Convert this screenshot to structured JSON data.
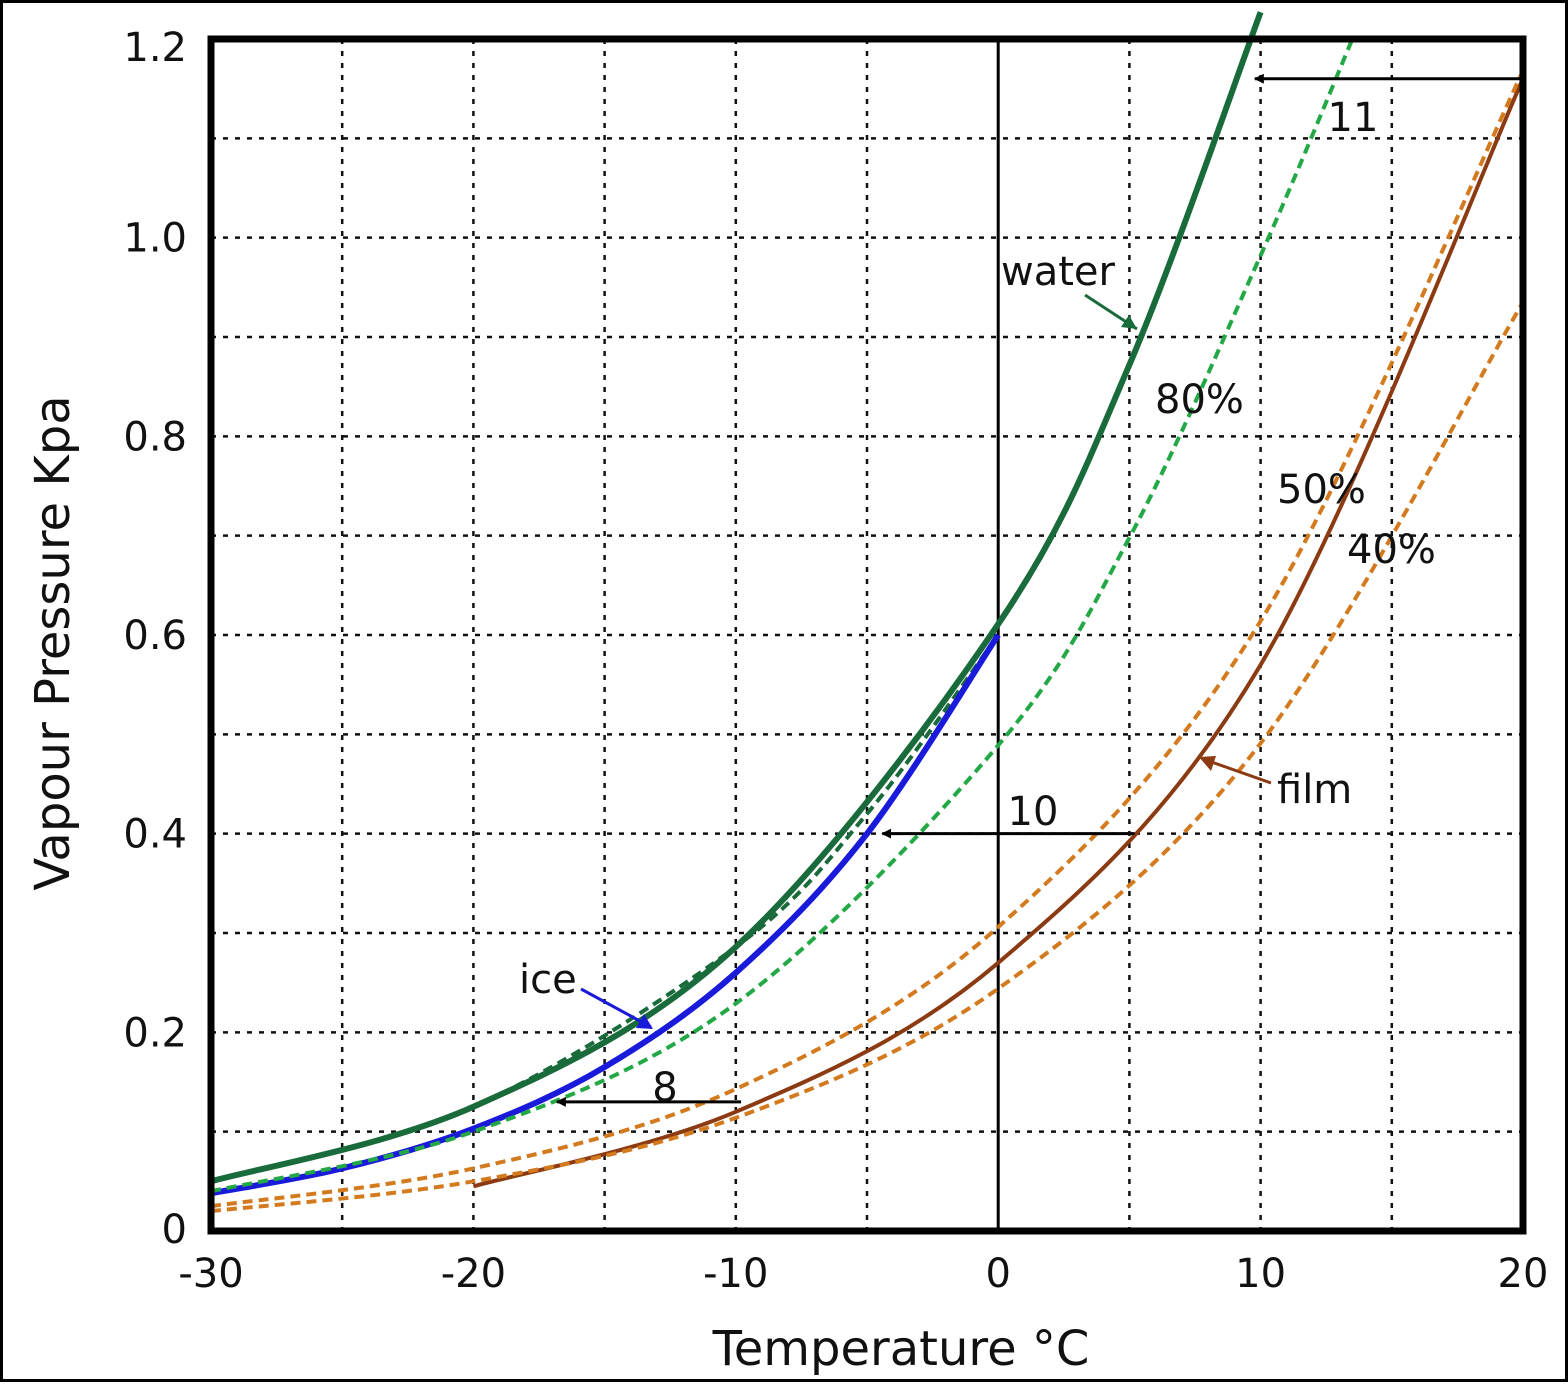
{
  "chart_data": {
    "type": "line",
    "title": "",
    "xlabel": "Temperature °C",
    "ylabel": "Vapour Pressure Kpa",
    "xlim": [
      -30,
      20
    ],
    "ylim": [
      0,
      1.2
    ],
    "grid": true,
    "x_ticks": [
      -30,
      -20,
      -10,
      0,
      10,
      20
    ],
    "x_tick_labels": [
      "-30",
      "-20",
      "-10",
      "0",
      "10",
      "20"
    ],
    "y_ticks": [
      0,
      0.2,
      0.4,
      0.6,
      0.8,
      1.0,
      1.2
    ],
    "y_tick_labels": [
      "0",
      "0.2",
      "0.4",
      "0.6",
      "0.8",
      "1.0",
      "1.2"
    ],
    "series": [
      {
        "name": "water",
        "color": "#1a6b3c",
        "style": "solid",
        "x": [
          -30,
          -20,
          -10,
          0,
          5,
          10
        ],
        "y": [
          0.05,
          0.125,
          0.286,
          0.611,
          0.872,
          1.227
        ]
      },
      {
        "color": "#1a6b3c",
        "style": "dashed",
        "x": [
          -30,
          -20,
          -10,
          -5,
          0
        ],
        "y": [
          0.05,
          0.125,
          0.286,
          0.42,
          0.6
        ]
      },
      {
        "name": "ice",
        "color": "#1a1adb",
        "style": "solid",
        "x": [
          -30,
          -25,
          -20,
          -15,
          -10,
          -5,
          0
        ],
        "y": [
          0.038,
          0.063,
          0.103,
          0.165,
          0.26,
          0.4,
          0.6
        ]
      },
      {
        "name": "80%",
        "color": "#22a845",
        "style": "dashed",
        "x": [
          -30,
          -20,
          -10,
          0,
          5,
          10,
          13.5
        ],
        "y": [
          0.04,
          0.1,
          0.229,
          0.489,
          0.698,
          0.982,
          1.2
        ]
      },
      {
        "name": "film",
        "color": "#8b3a12",
        "style": "solid",
        "x": [
          -20,
          -10,
          0,
          10,
          20
        ],
        "y": [
          0.045,
          0.12,
          0.27,
          0.57,
          1.16
        ]
      },
      {
        "name": "50%",
        "color": "#d47a1e",
        "style": "dashed",
        "x": [
          -30,
          -20,
          -10,
          0,
          10,
          20
        ],
        "y": [
          0.025,
          0.063,
          0.143,
          0.306,
          0.614,
          1.168
        ]
      },
      {
        "name": "40%",
        "color": "#d47a1e",
        "style": "dashed",
        "x": [
          -30,
          -20,
          -10,
          0,
          10,
          20
        ],
        "y": [
          0.02,
          0.05,
          0.114,
          0.244,
          0.491,
          0.935
        ]
      }
    ],
    "annotations": [
      {
        "text": "11",
        "arrow_from": [
          20,
          1.16
        ],
        "arrow_to": [
          9.4,
          1.16
        ]
      },
      {
        "text": "10",
        "arrow_from": [
          5.2,
          0.4
        ],
        "arrow_to": [
          -4.8,
          0.4
        ]
      },
      {
        "text": "8",
        "arrow_from": [
          -9.8,
          0.13
        ],
        "arrow_to": [
          -17.2,
          0.13
        ]
      }
    ],
    "labels": {
      "water": "water",
      "ice": "ice",
      "film": "film",
      "p80": "80%",
      "p50": "50%",
      "p40": "40%"
    }
  }
}
